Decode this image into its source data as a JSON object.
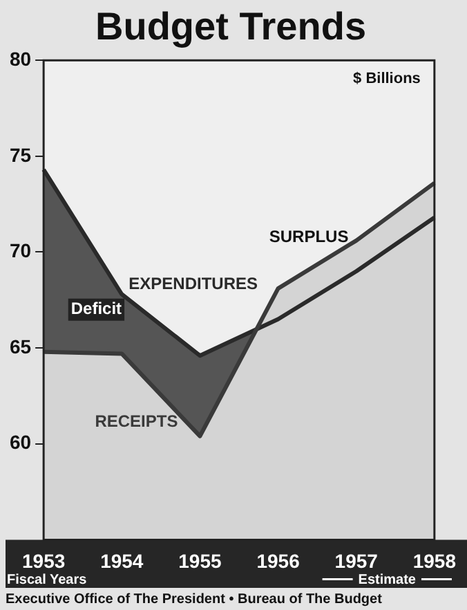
{
  "chart_data": {
    "type": "area",
    "title": "Budget Trends",
    "ylabel": "$ Billions",
    "xlabel": "Fiscal Years",
    "categories": [
      "1953",
      "1954",
      "1955",
      "1956",
      "1957",
      "1958"
    ],
    "series": [
      {
        "name": "EXPENDITURES",
        "color": "#2a2a2a",
        "values": [
          74.3,
          67.8,
          64.6,
          66.5,
          69.0,
          71.8
        ]
      },
      {
        "name": "RECEIPTS",
        "color": "#3a3a3a",
        "values": [
          64.8,
          64.7,
          60.4,
          68.1,
          70.6,
          73.6
        ]
      }
    ],
    "ylim": [
      55,
      80
    ],
    "yticks": [
      60,
      65,
      70,
      75,
      80
    ],
    "grid": false,
    "legend": false,
    "annotations": [
      "Deficit",
      "SURPLUS",
      "Estimate",
      "Executive Office of The President • Bureau of The Budget"
    ]
  }
}
